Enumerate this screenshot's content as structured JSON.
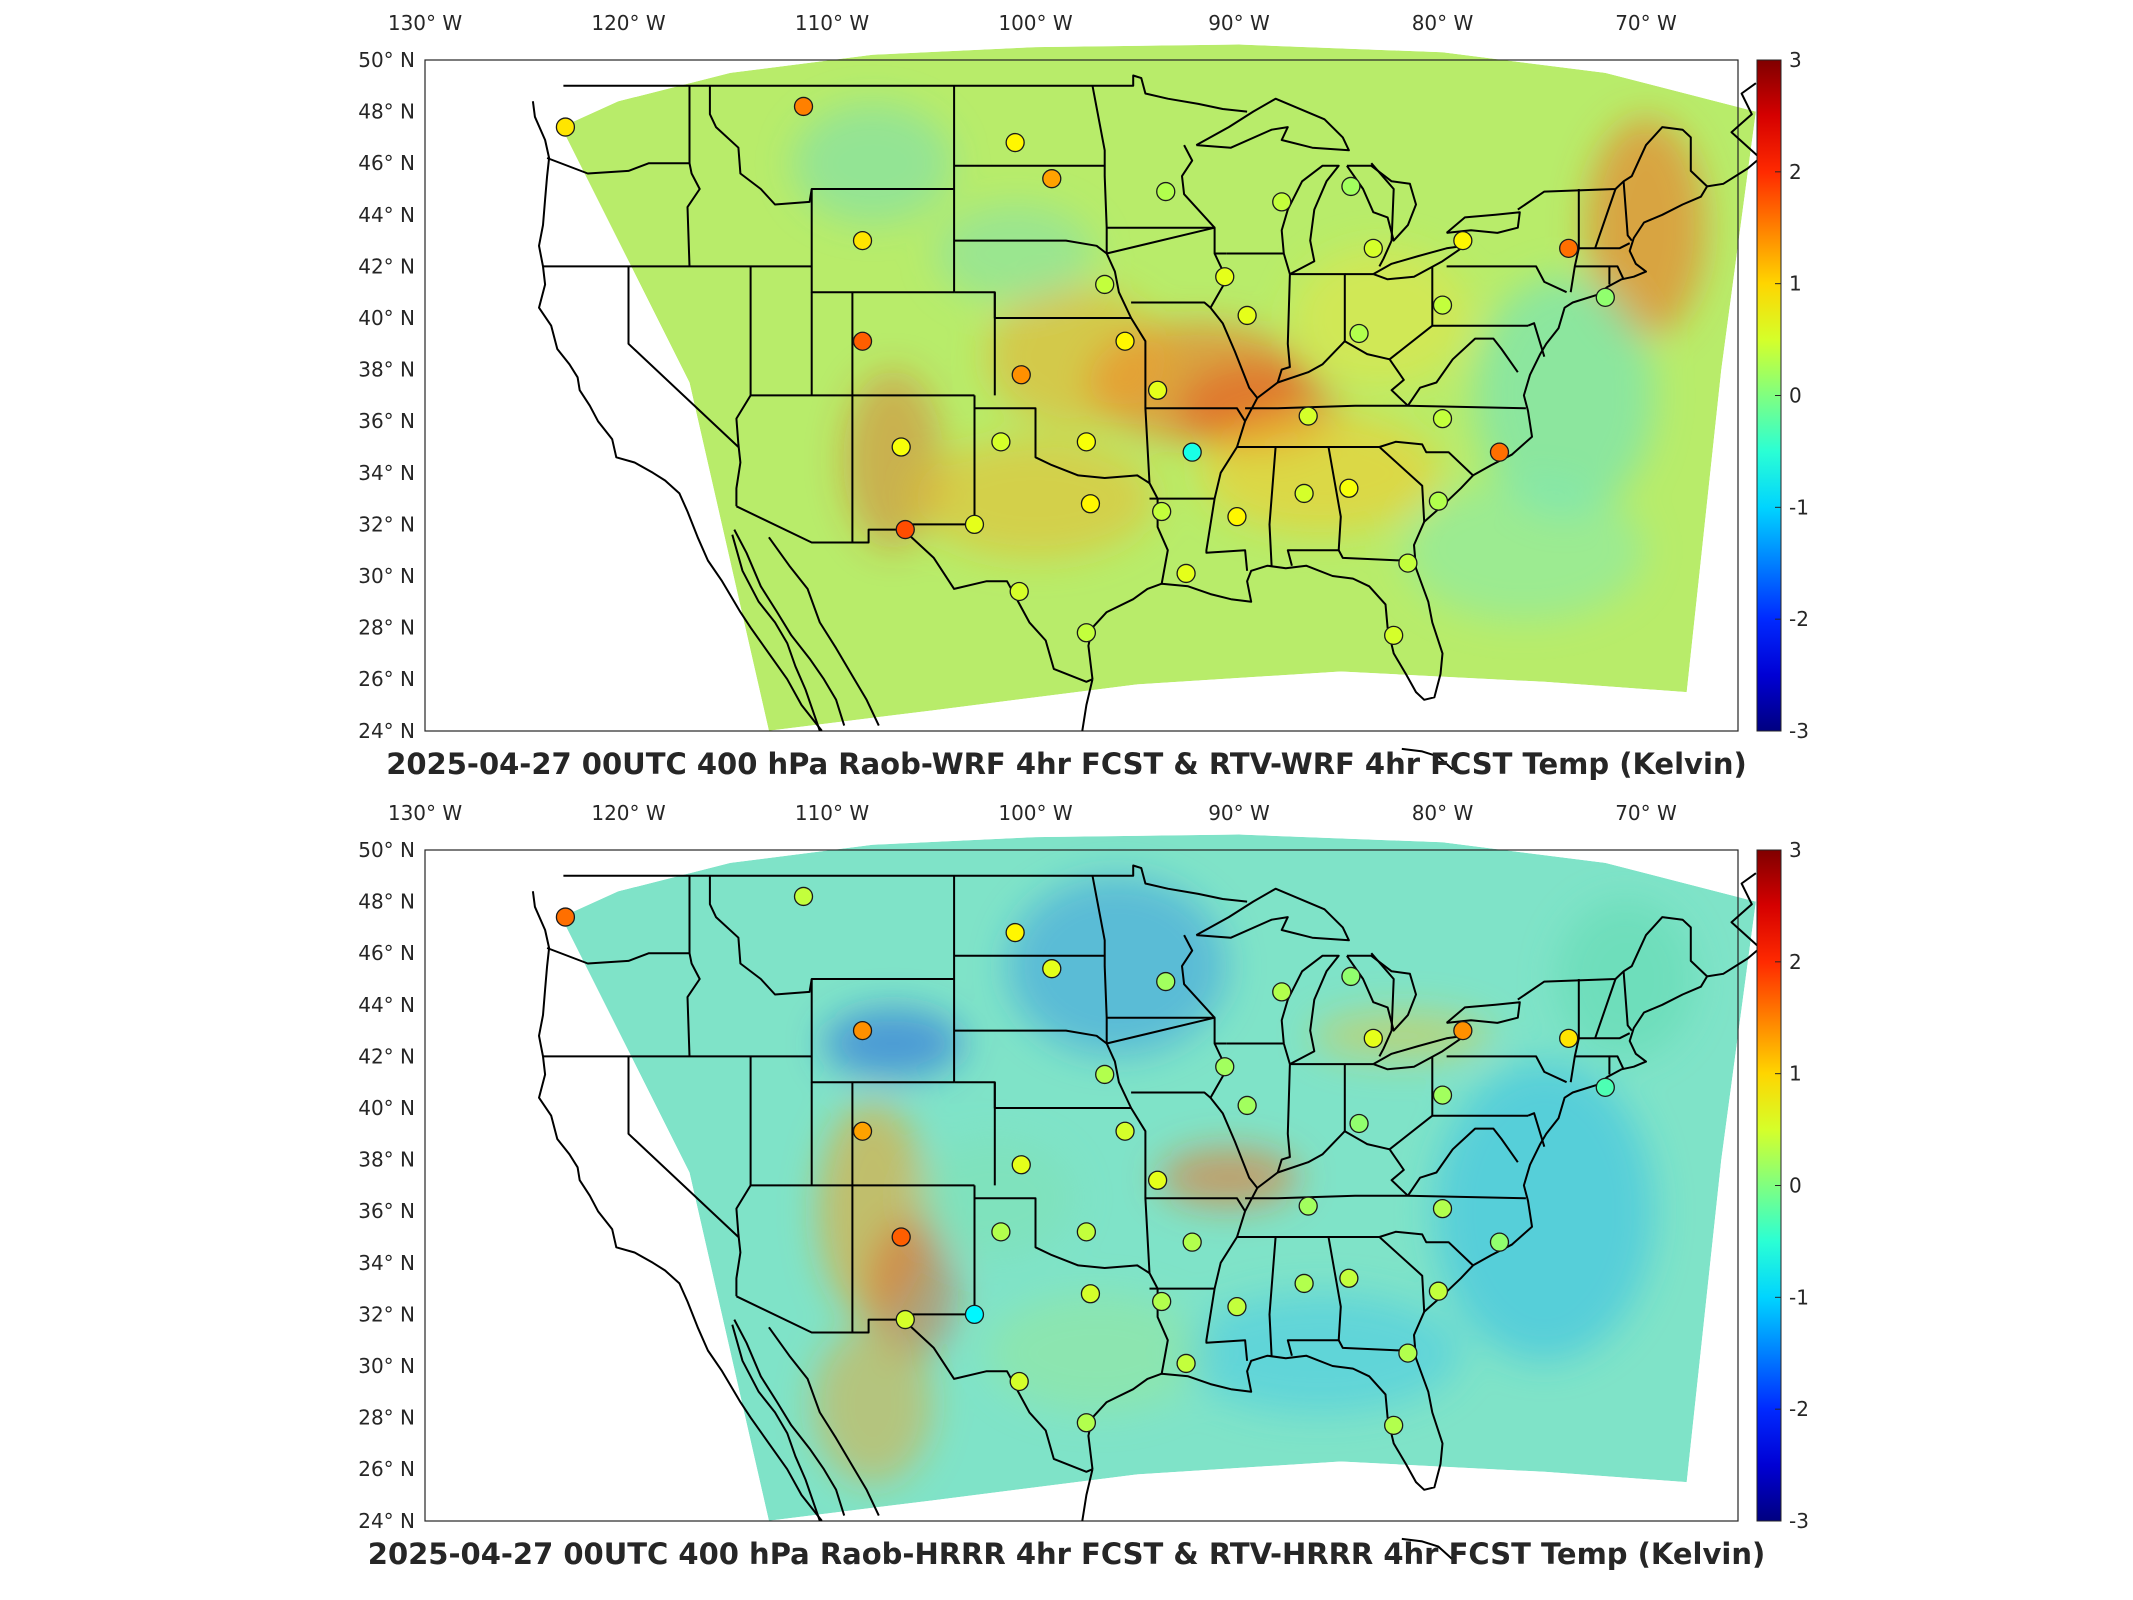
{
  "panels": [
    {
      "title": "2025-04-27 00UTC 400 hPa Raob-WRF 4hr FCST & RTV-WRF 4hr FCST Temp (Kelvin)",
      "bias": "warm",
      "stations": [
        {
          "lon": -123.1,
          "lat": 47.4,
          "v": 0.9
        },
        {
          "lon": -111.4,
          "lat": 48.2,
          "v": 1.5
        },
        {
          "lon": -101.0,
          "lat": 46.8,
          "v": 0.8
        },
        {
          "lon": -99.2,
          "lat": 45.4,
          "v": 1.3
        },
        {
          "lon": -93.6,
          "lat": 44.9,
          "v": 0.3
        },
        {
          "lon": -87.9,
          "lat": 44.5,
          "v": 0.4
        },
        {
          "lon": -84.5,
          "lat": 45.1,
          "v": 0.2
        },
        {
          "lon": -83.4,
          "lat": 42.7,
          "v": 0.5
        },
        {
          "lon": -79.0,
          "lat": 43.0,
          "v": 0.8
        },
        {
          "lon": -73.8,
          "lat": 42.7,
          "v": 1.6
        },
        {
          "lon": -72.0,
          "lat": 40.8,
          "v": 0.1
        },
        {
          "lon": -80.0,
          "lat": 40.5,
          "v": 0.4
        },
        {
          "lon": -84.1,
          "lat": 39.4,
          "v": 0.3
        },
        {
          "lon": -89.6,
          "lat": 40.1,
          "v": 0.6
        },
        {
          "lon": -90.7,
          "lat": 41.6,
          "v": 0.6
        },
        {
          "lon": -96.6,
          "lat": 41.3,
          "v": 0.4
        },
        {
          "lon": -95.6,
          "lat": 39.1,
          "v": 0.8
        },
        {
          "lon": -100.7,
          "lat": 37.8,
          "v": 1.4
        },
        {
          "lon": -108.5,
          "lat": 43.0,
          "v": 0.9
        },
        {
          "lon": -108.5,
          "lat": 39.1,
          "v": 1.7
        },
        {
          "lon": -106.6,
          "lat": 35.0,
          "v": 0.7
        },
        {
          "lon": -101.7,
          "lat": 35.2,
          "v": 0.5
        },
        {
          "lon": -97.5,
          "lat": 35.2,
          "v": 0.7
        },
        {
          "lon": -97.3,
          "lat": 32.8,
          "v": 0.8
        },
        {
          "lon": -92.3,
          "lat": 34.8,
          "v": -0.6
        },
        {
          "lon": -94.0,
          "lat": 37.2,
          "v": 0.6
        },
        {
          "lon": -86.6,
          "lat": 36.2,
          "v": 0.5
        },
        {
          "lon": -80.0,
          "lat": 36.1,
          "v": 0.4
        },
        {
          "lon": -77.2,
          "lat": 34.8,
          "v": 1.6
        },
        {
          "lon": -80.2,
          "lat": 32.9,
          "v": 0.3
        },
        {
          "lon": -84.6,
          "lat": 33.4,
          "v": 0.7
        },
        {
          "lon": -86.8,
          "lat": 33.2,
          "v": 0.5
        },
        {
          "lon": -90.1,
          "lat": 32.3,
          "v": 0.8
        },
        {
          "lon": -93.8,
          "lat": 32.5,
          "v": 0.4
        },
        {
          "lon": -92.6,
          "lat": 30.1,
          "v": 0.6
        },
        {
          "lon": -97.5,
          "lat": 27.8,
          "v": 0.4
        },
        {
          "lon": -100.8,
          "lat": 29.4,
          "v": 0.5
        },
        {
          "lon": -103.0,
          "lat": 32.0,
          "v": 0.6
        },
        {
          "lon": -106.4,
          "lat": 31.8,
          "v": 1.8
        },
        {
          "lon": -81.7,
          "lat": 30.5,
          "v": 0.4
        },
        {
          "lon": -82.4,
          "lat": 27.7,
          "v": 0.5
        }
      ]
    },
    {
      "title": "2025-04-27 00UTC 400 hPa Raob-HRRR 4hr FCST & RTV-HRRR 4hr FCST Temp (Kelvin)",
      "bias": "cool",
      "stations": [
        {
          "lon": -123.1,
          "lat": 47.4,
          "v": 1.6
        },
        {
          "lon": -111.4,
          "lat": 48.2,
          "v": 0.4
        },
        {
          "lon": -101.0,
          "lat": 46.8,
          "v": 0.8
        },
        {
          "lon": -99.2,
          "lat": 45.4,
          "v": 0.6
        },
        {
          "lon": -93.6,
          "lat": 44.9,
          "v": 0.2
        },
        {
          "lon": -87.9,
          "lat": 44.5,
          "v": 0.3
        },
        {
          "lon": -84.5,
          "lat": 45.1,
          "v": 0.1
        },
        {
          "lon": -83.4,
          "lat": 42.7,
          "v": 0.6
        },
        {
          "lon": -79.0,
          "lat": 43.0,
          "v": 1.4
        },
        {
          "lon": -73.8,
          "lat": 42.7,
          "v": 0.9
        },
        {
          "lon": -72.0,
          "lat": 40.8,
          "v": -0.3
        },
        {
          "lon": -80.0,
          "lat": 40.5,
          "v": 0.2
        },
        {
          "lon": -84.1,
          "lat": 39.4,
          "v": 0.1
        },
        {
          "lon": -89.6,
          "lat": 40.1,
          "v": 0.2
        },
        {
          "lon": -90.7,
          "lat": 41.6,
          "v": 0.2
        },
        {
          "lon": -96.6,
          "lat": 41.3,
          "v": 0.3
        },
        {
          "lon": -95.6,
          "lat": 39.1,
          "v": 0.5
        },
        {
          "lon": -100.7,
          "lat": 37.8,
          "v": 0.6
        },
        {
          "lon": -108.5,
          "lat": 43.0,
          "v": 1.4
        },
        {
          "lon": -108.5,
          "lat": 39.1,
          "v": 1.3
        },
        {
          "lon": -106.6,
          "lat": 35.0,
          "v": 1.7
        },
        {
          "lon": -101.7,
          "lat": 35.2,
          "v": 0.3
        },
        {
          "lon": -97.5,
          "lat": 35.2,
          "v": 0.4
        },
        {
          "lon": -97.3,
          "lat": 32.8,
          "v": 0.5
        },
        {
          "lon": -92.3,
          "lat": 34.8,
          "v": 0.3
        },
        {
          "lon": -94.0,
          "lat": 37.2,
          "v": 0.6
        },
        {
          "lon": -86.6,
          "lat": 36.2,
          "v": 0.2
        },
        {
          "lon": -80.0,
          "lat": 36.1,
          "v": 0.3
        },
        {
          "lon": -77.2,
          "lat": 34.8,
          "v": 0.1
        },
        {
          "lon": -80.2,
          "lat": 32.9,
          "v": 0.4
        },
        {
          "lon": -84.6,
          "lat": 33.4,
          "v": 0.4
        },
        {
          "lon": -86.8,
          "lat": 33.2,
          "v": 0.3
        },
        {
          "lon": -90.1,
          "lat": 32.3,
          "v": 0.4
        },
        {
          "lon": -93.8,
          "lat": 32.5,
          "v": 0.3
        },
        {
          "lon": -92.6,
          "lat": 30.1,
          "v": 0.4
        },
        {
          "lon": -97.5,
          "lat": 27.8,
          "v": 0.3
        },
        {
          "lon": -100.8,
          "lat": 29.4,
          "v": 0.5
        },
        {
          "lon": -103.0,
          "lat": 32.0,
          "v": -0.8
        },
        {
          "lon": -106.4,
          "lat": 31.8,
          "v": 0.5
        },
        {
          "lon": -81.7,
          "lat": 30.5,
          "v": 0.3
        },
        {
          "lon": -82.4,
          "lat": 27.7,
          "v": 0.3
        }
      ]
    }
  ],
  "lon_ticks": [
    {
      "lon": -130,
      "label": "130° W"
    },
    {
      "lon": -120,
      "label": "120° W"
    },
    {
      "lon": -110,
      "label": "110° W"
    },
    {
      "lon": -100,
      "label": "100° W"
    },
    {
      "lon": -90,
      "label": "90° W"
    },
    {
      "lon": -80,
      "label": "80° W"
    },
    {
      "lon": -70,
      "label": "70° W"
    }
  ],
  "lat_ticks": [
    {
      "lat": 50,
      "label": "50° N"
    },
    {
      "lat": 48,
      "label": "48° N"
    },
    {
      "lat": 46,
      "label": "46° N"
    },
    {
      "lat": 44,
      "label": "44° N"
    },
    {
      "lat": 42,
      "label": "42° N"
    },
    {
      "lat": 40,
      "label": "40° N"
    },
    {
      "lat": 38,
      "label": "38° N"
    },
    {
      "lat": 36,
      "label": "36° N"
    },
    {
      "lat": 34,
      "label": "34° N"
    },
    {
      "lat": 32,
      "label": "32° N"
    },
    {
      "lat": 30,
      "label": "30° N"
    },
    {
      "lat": 28,
      "label": "28° N"
    },
    {
      "lat": 26,
      "label": "26° N"
    },
    {
      "lat": 24,
      "label": "24° N"
    }
  ],
  "colorbar": {
    "min": -3,
    "max": 3,
    "ticks": [
      "3",
      "2",
      "1",
      "0",
      "-1",
      "-2",
      "-3"
    ],
    "colormap": "jet"
  }
}
